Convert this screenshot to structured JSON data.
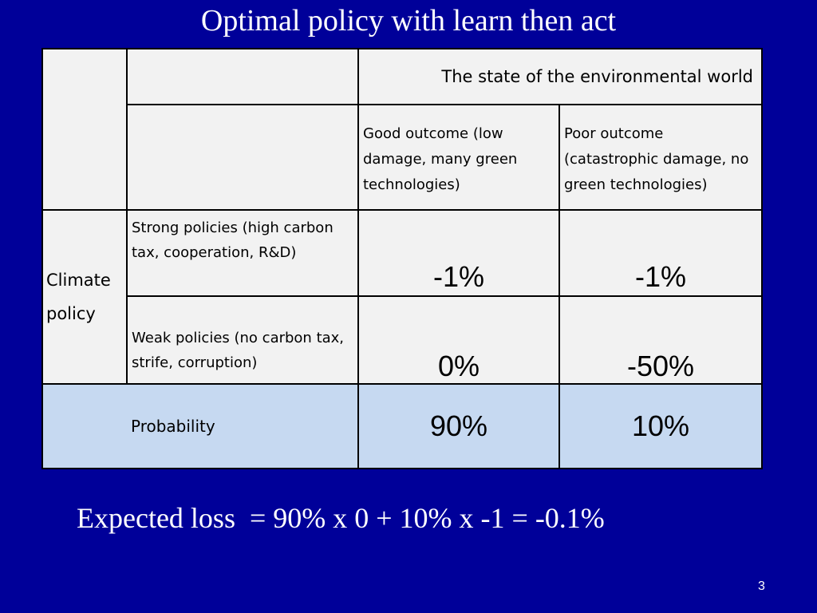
{
  "slide": {
    "title": "Optimal policy with learn then act",
    "formula": "Expected loss  = 90% x 0 + 10% x -1 = -0.1%",
    "page_number": "3"
  },
  "table": {
    "header_env": "The state of the environmental world",
    "col_good": "Good outcome (low damage, many green technologies)",
    "col_poor": "Poor outcome (catastrophic damage, no green technologies)",
    "climate_label": "Climate policy",
    "row_strong": "Strong policies (high carbon tax, cooperation, R&D)",
    "row_weak": "Weak policies (no carbon tax, strife, corruption)",
    "strong_good": "-1%",
    "strong_poor": "-1%",
    "weak_good": "0%",
    "weak_poor": "-50%",
    "prob_label": "Probability",
    "prob_good": "90%",
    "prob_poor": "10%"
  }
}
